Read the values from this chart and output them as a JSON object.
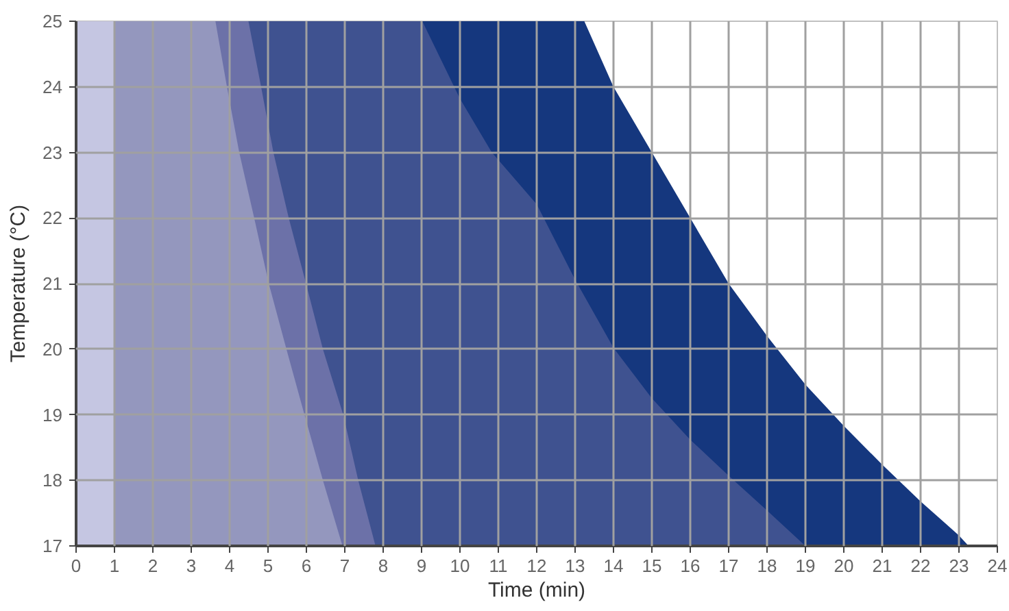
{
  "chart_data": {
    "type": "area",
    "xlabel": "Time (min)",
    "ylabel": "Temperature (°C)",
    "xlim": [
      0,
      24
    ],
    "ylim": [
      17,
      25
    ],
    "xticks": [
      0,
      1,
      2,
      3,
      4,
      5,
      6,
      7,
      8,
      9,
      10,
      11,
      12,
      13,
      14,
      15,
      16,
      17,
      18,
      19,
      20,
      21,
      22,
      23,
      24
    ],
    "yticks": [
      17,
      18,
      19,
      20,
      21,
      22,
      23,
      24,
      25
    ],
    "grid": true,
    "series": [
      {
        "color": "#15377e",
        "x": [
          1,
          13.24,
          14,
          15,
          16,
          17,
          18,
          19,
          20,
          21,
          22,
          23,
          23.25
        ],
        "values": [
          25,
          25,
          24,
          23,
          22,
          21,
          20.2,
          19.46,
          18.83,
          18.24,
          17.68,
          17.16,
          17
        ]
      },
      {
        "color": "#3f5290",
        "x": [
          1,
          9.02,
          10,
          10.83,
          12,
          13,
          14,
          15,
          16,
          17,
          18,
          19
        ],
        "values": [
          25,
          25,
          23.82,
          23,
          22.21,
          21.06,
          20.02,
          19.25,
          18.62,
          18.07,
          17.54,
          17
        ]
      },
      {
        "color": "#6c71a8",
        "x": [
          1,
          4.49,
          4.82,
          5.14,
          5.54,
          5.99,
          6.43,
          6.96,
          7.35,
          7.8
        ],
        "values": [
          25,
          25,
          24,
          23,
          22,
          21,
          20,
          19,
          18,
          17
        ]
      },
      {
        "color": "#9497be",
        "x": [
          1,
          3.63,
          3.93,
          4.25,
          4.64,
          5.02,
          5.48,
          5.95,
          6.43,
          6.94
        ],
        "values": [
          25,
          25,
          24,
          23,
          22,
          21,
          20,
          19,
          18,
          17
        ]
      },
      {
        "color": "#c5c6e2",
        "x": [
          0,
          1
        ],
        "values": [
          25,
          25
        ]
      }
    ]
  }
}
